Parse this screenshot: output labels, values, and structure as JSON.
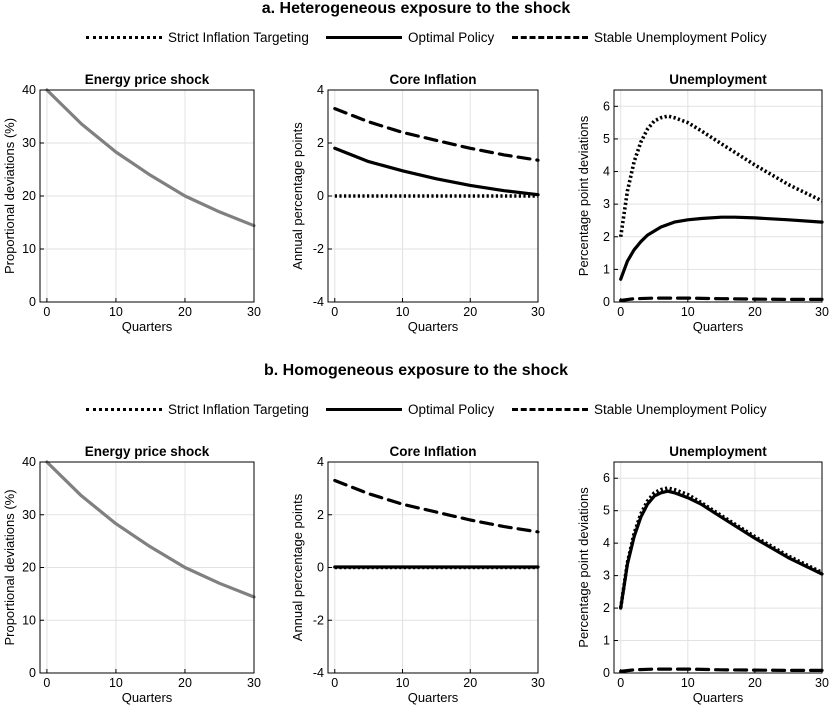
{
  "panels": [
    {
      "title": "a. Heterogeneous exposure to the shock",
      "legend": [
        {
          "label": "Strict Inflation Targeting",
          "style": "dotted"
        },
        {
          "label": "Optimal Policy",
          "style": "solid"
        },
        {
          "label": "Stable Unemployment Policy",
          "style": "dashed"
        }
      ]
    },
    {
      "title": "b. Homogeneous exposure to the shock",
      "legend": [
        {
          "label": "Strict Inflation Targeting",
          "style": "dotted"
        },
        {
          "label": "Optimal Policy",
          "style": "solid"
        },
        {
          "label": "Stable Unemployment Policy",
          "style": "dashed"
        }
      ]
    }
  ],
  "chart_data": [
    {
      "panel": "a",
      "type": "line",
      "title": "Energy price shock",
      "xlabel": "Quarters",
      "ylabel": "Proportional deviations (%)",
      "xlim": [
        -1,
        30
      ],
      "ylim": [
        0,
        40
      ],
      "xticks": [
        0,
        10,
        20,
        30
      ],
      "yticks": [
        0,
        10,
        20,
        30,
        40
      ],
      "grid": true,
      "series": [
        {
          "style": "solid",
          "color": "#808080",
          "x": [
            0,
            5,
            10,
            15,
            20,
            25,
            30
          ],
          "y": [
            40,
            33.6,
            28.3,
            23.9,
            20.0,
            17.0,
            14.4
          ]
        }
      ]
    },
    {
      "panel": "a",
      "type": "line",
      "title": "Core Inflation",
      "xlabel": "Quarters",
      "ylabel": "Annual percentage points",
      "xlim": [
        -1,
        30
      ],
      "ylim": [
        -4,
        4
      ],
      "xticks": [
        0,
        10,
        20,
        30
      ],
      "yticks": [
        -4,
        -2,
        0,
        2,
        4
      ],
      "grid": true,
      "series": [
        {
          "style": "dotted",
          "color": "#000000",
          "x": [
            0,
            5,
            10,
            15,
            20,
            25,
            30
          ],
          "y": [
            0,
            0,
            0,
            0,
            0,
            0,
            0
          ]
        },
        {
          "style": "solid",
          "color": "#000000",
          "x": [
            0,
            5,
            10,
            15,
            20,
            25,
            30
          ],
          "y": [
            1.8,
            1.3,
            0.95,
            0.65,
            0.4,
            0.2,
            0.05
          ]
        },
        {
          "style": "dashed",
          "color": "#000000",
          "x": [
            0,
            5,
            10,
            15,
            20,
            25,
            30
          ],
          "y": [
            3.3,
            2.8,
            2.4,
            2.1,
            1.8,
            1.55,
            1.35
          ]
        }
      ]
    },
    {
      "panel": "a",
      "type": "line",
      "title": "Unemployment",
      "xlabel": "Quarters",
      "ylabel": "Percentage point deviations",
      "xlim": [
        -1,
        30
      ],
      "ylim": [
        0,
        6.5
      ],
      "xticks": [
        0,
        10,
        20,
        30
      ],
      "yticks": [
        0,
        1,
        2,
        3,
        4,
        5,
        6
      ],
      "grid": true,
      "series": [
        {
          "style": "dotted",
          "color": "#000000",
          "x": [
            0,
            1,
            2,
            3,
            4,
            5,
            6,
            7,
            8,
            10,
            12,
            15,
            20,
            25,
            30
          ],
          "y": [
            2.0,
            3.4,
            4.3,
            4.9,
            5.3,
            5.55,
            5.65,
            5.7,
            5.65,
            5.5,
            5.25,
            4.85,
            4.2,
            3.6,
            3.1
          ]
        },
        {
          "style": "solid",
          "color": "#000000",
          "x": [
            0,
            1,
            2,
            3,
            4,
            6,
            8,
            10,
            12,
            15,
            17,
            20,
            25,
            30
          ],
          "y": [
            0.7,
            1.25,
            1.6,
            1.85,
            2.05,
            2.3,
            2.45,
            2.52,
            2.56,
            2.6,
            2.6,
            2.58,
            2.52,
            2.45
          ]
        },
        {
          "style": "dashed",
          "color": "#000000",
          "x": [
            0,
            2,
            5,
            8,
            10,
            15,
            20,
            25,
            30
          ],
          "y": [
            0.05,
            0.1,
            0.12,
            0.12,
            0.12,
            0.1,
            0.09,
            0.08,
            0.08
          ]
        }
      ]
    },
    {
      "panel": "b",
      "type": "line",
      "title": "Energy price shock",
      "xlabel": "Quarters",
      "ylabel": "Proportional deviations (%)",
      "xlim": [
        -1,
        30
      ],
      "ylim": [
        0,
        40
      ],
      "xticks": [
        0,
        10,
        20,
        30
      ],
      "yticks": [
        0,
        10,
        20,
        30,
        40
      ],
      "grid": true,
      "series": [
        {
          "style": "solid",
          "color": "#808080",
          "x": [
            0,
            5,
            10,
            15,
            20,
            25,
            30
          ],
          "y": [
            40,
            33.6,
            28.3,
            23.9,
            20.0,
            17.0,
            14.4
          ]
        }
      ]
    },
    {
      "panel": "b",
      "type": "line",
      "title": "Core Inflation",
      "xlabel": "Quarters",
      "ylabel": "Annual percentage points",
      "xlim": [
        -1,
        30
      ],
      "ylim": [
        -4,
        4
      ],
      "xticks": [
        0,
        10,
        20,
        30
      ],
      "yticks": [
        -4,
        -2,
        0,
        2,
        4
      ],
      "grid": true,
      "series": [
        {
          "style": "dotted",
          "color": "#000000",
          "x": [
            0,
            5,
            10,
            15,
            20,
            25,
            30
          ],
          "y": [
            0,
            0,
            0,
            0,
            0,
            0,
            0
          ]
        },
        {
          "style": "solid",
          "color": "#000000",
          "x": [
            0,
            5,
            10,
            15,
            20,
            25,
            30
          ],
          "y": [
            0.02,
            0.02,
            0.02,
            0.02,
            0.02,
            0.02,
            0.02
          ]
        },
        {
          "style": "dashed",
          "color": "#000000",
          "x": [
            0,
            5,
            10,
            15,
            20,
            25,
            30
          ],
          "y": [
            3.3,
            2.8,
            2.4,
            2.1,
            1.8,
            1.55,
            1.35
          ]
        }
      ]
    },
    {
      "panel": "b",
      "type": "line",
      "title": "Unemployment",
      "xlabel": "Quarters",
      "ylabel": "Percentage point deviations",
      "xlim": [
        -1,
        30
      ],
      "ylim": [
        0,
        6.5
      ],
      "xticks": [
        0,
        10,
        20,
        30
      ],
      "yticks": [
        0,
        1,
        2,
        3,
        4,
        5,
        6
      ],
      "grid": true,
      "series": [
        {
          "style": "dotted",
          "color": "#000000",
          "x": [
            0,
            1,
            2,
            3,
            4,
            5,
            6,
            7,
            8,
            10,
            12,
            15,
            20,
            25,
            30
          ],
          "y": [
            2.0,
            3.4,
            4.3,
            4.9,
            5.3,
            5.55,
            5.65,
            5.7,
            5.65,
            5.5,
            5.25,
            4.85,
            4.2,
            3.6,
            3.1
          ]
        },
        {
          "style": "solid",
          "color": "#000000",
          "x": [
            0,
            1,
            2,
            3,
            4,
            5,
            6,
            7,
            8,
            10,
            12,
            15,
            20,
            25,
            30
          ],
          "y": [
            2.0,
            3.35,
            4.2,
            4.8,
            5.2,
            5.45,
            5.55,
            5.6,
            5.55,
            5.4,
            5.2,
            4.8,
            4.15,
            3.55,
            3.05
          ]
        },
        {
          "style": "dashed",
          "color": "#000000",
          "x": [
            0,
            2,
            5,
            8,
            10,
            15,
            20,
            25,
            30
          ],
          "y": [
            0.05,
            0.1,
            0.12,
            0.12,
            0.12,
            0.1,
            0.09,
            0.08,
            0.08
          ]
        }
      ]
    }
  ]
}
